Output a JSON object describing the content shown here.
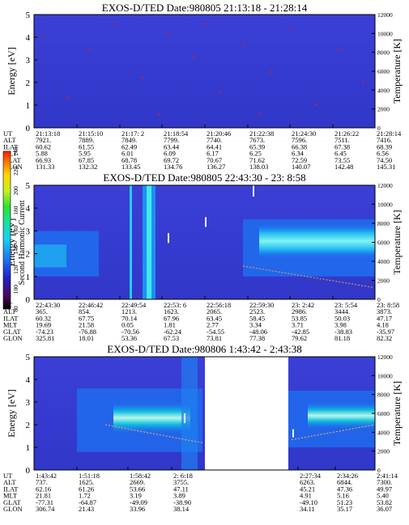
{
  "chart_data": [
    {
      "type": "heatmap",
      "title": "EXOS-D/TED   Date:980805  21:13:18 - 21:28:14",
      "ylabel": "Energy [eV]",
      "ylabel_right": "Temperature [K]",
      "ylim": [
        0,
        5
      ],
      "yticks": [
        0,
        1,
        2,
        3,
        4,
        5
      ],
      "ylim_right": [
        0,
        12000
      ],
      "yticks_right": [
        0,
        2000,
        4000,
        6000,
        8000,
        10000,
        12000
      ],
      "row_labels": [
        "UT",
        "ALT",
        "ILAT",
        "MLT",
        "GLAT",
        "GLON"
      ],
      "columns": [
        [
          "21:13:18",
          "7921.",
          "60.62",
          "5.88",
          "66.93",
          "131.33"
        ],
        [
          "21:15:10",
          "7889.",
          "61.55",
          "5.95",
          "67.85",
          "132.32"
        ],
        [
          "21:17: 2",
          "7849.",
          "62.49",
          "6.01",
          "68.78",
          "133.45"
        ],
        [
          "21:18:54",
          "7799.",
          "63.44",
          "6.09",
          "69.72",
          "134.76"
        ],
        [
          "21:20:46",
          "7740.",
          "64.41",
          "6.17",
          "70.67",
          "136.27"
        ],
        [
          "21:22:38",
          "7673.",
          "65.39",
          "6.25",
          "71.62",
          "138.03"
        ],
        [
          "21:24:30",
          "7596.",
          "66.38",
          "6.34",
          "72.59",
          "140.07"
        ],
        [
          "21:26:22",
          "7511.",
          "67.38",
          "6.45",
          "73.55",
          "142.48"
        ],
        [
          "21:28:14",
          "7416.",
          "68.39",
          "6.56",
          "74.50",
          "145.31"
        ]
      ]
    },
    {
      "type": "heatmap",
      "title": "EXOS-D/TED   Date:980805  22:43:30 - 23: 8:58",
      "ylabel": "Energy [eV]",
      "ylabel_right": "Temperature [K]",
      "ylim": [
        0,
        5
      ],
      "yticks": [
        0,
        1,
        2,
        3,
        4,
        5
      ],
      "ylim_right": [
        0,
        12000
      ],
      "yticks_right": [
        0,
        2000,
        4000,
        6000,
        8000,
        10000,
        12000
      ],
      "colorbar": {
        "label": "Second Harmonic Current",
        "range": [
          80,
          240
        ],
        "ticks": [
          80,
          100,
          120,
          140,
          160,
          180,
          200,
          220,
          240
        ]
      },
      "row_labels": [
        "UT",
        "ALT",
        "ILAT",
        "MLT",
        "GLAT",
        "GLON"
      ],
      "columns": [
        [
          "22:43:30",
          "365.",
          "60.32",
          "19.69",
          "-74.23",
          "325.81"
        ],
        [
          "22:46:42",
          "854.",
          "67.75",
          "21.58",
          "-76.88",
          "18.01"
        ],
        [
          "22:49:54",
          "1213.",
          "70.14",
          "0.05",
          "-70.56",
          "53.36"
        ],
        [
          "22:53: 6",
          "1623.",
          "67.96",
          "1.81",
          "-62.24",
          "67.53"
        ],
        [
          "22:56:18",
          "2065.",
          "63.45",
          "2.77",
          "-54.55",
          "73.81"
        ],
        [
          "22:59:30",
          "2523.",
          "58.45",
          "3.34",
          "-48.06",
          "77.38"
        ],
        [
          "23: 2:42",
          "2986.",
          "53.85",
          "3.71",
          "-42.85",
          "79.62"
        ],
        [
          "23: 5:54",
          "3444.",
          "50.03",
          "3.98",
          "-38.83",
          "81.18"
        ],
        [
          "23: 8:58",
          "3873.",
          "47.17",
          "4.18",
          "-35.97",
          "82.32"
        ]
      ]
    },
    {
      "type": "heatmap",
      "title": "EXOS-D/TED   Date:980806  1:43:42 - 2:43:38",
      "ylabel": "Energy [eV]",
      "ylabel_right": "Temperature [K]",
      "ylim": [
        0,
        5
      ],
      "yticks": [
        0,
        1,
        2,
        3,
        4,
        5
      ],
      "ylim_right": [
        0,
        12000
      ],
      "yticks_right": [
        0,
        2000,
        4000,
        6000,
        8000,
        10000,
        12000
      ],
      "row_labels": [
        "UT",
        "ALT",
        "ILAT",
        "MLT",
        "GLAT",
        "GLON"
      ],
      "columns": [
        [
          "1:43:42",
          "737.",
          "62.16",
          "21.81",
          "-77.31",
          "306.74"
        ],
        [
          "1:51:18",
          "1625.",
          "61.26",
          "1.72",
          "-64.87",
          "21.43"
        ],
        [
          "1:58:42",
          "2669.",
          "53.66",
          "3.19",
          "-49.09",
          "33.96"
        ],
        [
          "2: 6:18",
          "3755.",
          "47.11",
          "3.89",
          "-38.90",
          "38.14"
        ],
        [
          "2:27:34",
          "6263.",
          "45.21",
          "4.91",
          "-49.10",
          "34.11"
        ],
        [
          "2:34:26",
          "6844.",
          "47.36",
          "5.16",
          "51.23",
          "35.17"
        ],
        [
          "2:41:14",
          "7300.",
          "49.97",
          "5.40",
          "53.82",
          "36.07"
        ]
      ]
    }
  ]
}
